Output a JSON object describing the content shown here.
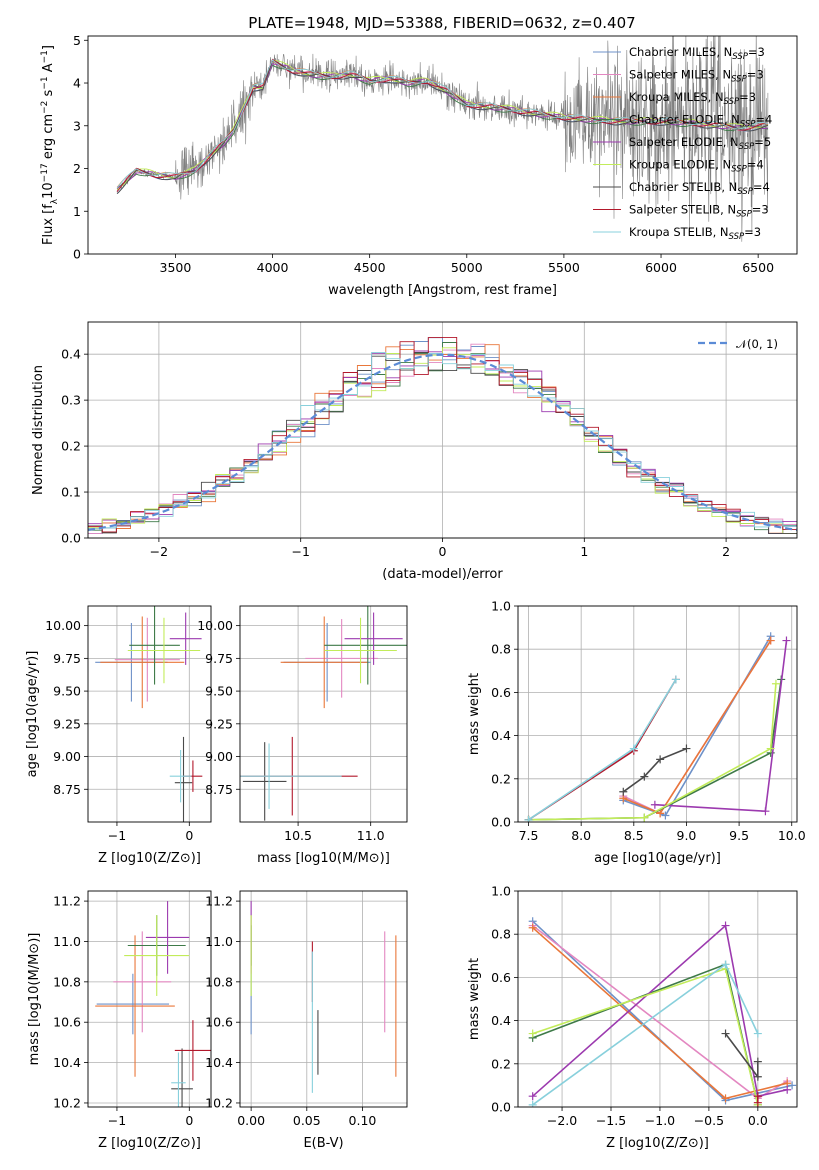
{
  "figure_title": "PLATE=1948, MJD=53388, FIBERID=0632, z=0.407",
  "colors": [
    "#6e91c8",
    "#e387c1",
    "#e9773a",
    "#3e7a48",
    "#9c3aaf",
    "#c2ec5a",
    "#4a4a4a",
    "#b2182b",
    "#88d0dc"
  ],
  "chart_data": [
    {
      "id": "spectrum",
      "type": "line",
      "title": "PLATE=1948, MJD=53388, FIBERID=0632, z=0.407",
      "xlabel": "wavelength [Angstrom, rest frame]",
      "ylabel": "Flux [f_λ 10^-17 erg cm^-2 s^-1 A^-1]",
      "xlim": [
        3050,
        6700
      ],
      "ylim": [
        0,
        5.1
      ],
      "xticks": [
        "3500",
        "4000",
        "4500",
        "5000",
        "5500",
        "6000",
        "6500"
      ],
      "yticks": [
        "0",
        "1",
        "2",
        "3",
        "4",
        "5"
      ],
      "grid": false,
      "legend_position": "top-right",
      "data_color": "#808080",
      "model_x": [
        3200,
        3300,
        3400,
        3500,
        3600,
        3700,
        3750,
        3800,
        3900,
        3950,
        4000,
        4100,
        4200,
        4300,
        4400,
        4500,
        4600,
        4700,
        4800,
        4900,
        5000,
        5200,
        5400,
        5600,
        5800,
        6000,
        6200,
        6400,
        6550
      ],
      "model_y": [
        1.5,
        1.95,
        1.85,
        1.8,
        1.95,
        2.4,
        2.6,
        2.9,
        3.9,
        3.9,
        4.5,
        4.3,
        4.2,
        4.15,
        4.2,
        4.05,
        4.1,
        4.0,
        4.05,
        3.8,
        3.5,
        3.4,
        3.25,
        3.15,
        3.1,
        3.1,
        3.05,
        2.95,
        3.0
      ],
      "legend": [
        {
          "label": "Chabrier MILES, N",
          "sub": "SSP",
          "suffix": "=3"
        },
        {
          "label": "Salpeter MILES, N",
          "sub": "SSP",
          "suffix": "=3"
        },
        {
          "label": "Kroupa MILES, N",
          "sub": "SSP",
          "suffix": "=3"
        },
        {
          "label": "Chabrier ELODIE, N",
          "sub": "SSP",
          "suffix": "=4"
        },
        {
          "label": "Salpeter ELODIE, N",
          "sub": "SSP",
          "suffix": "=5"
        },
        {
          "label": "Kroupa ELODIE, N",
          "sub": "SSP",
          "suffix": "=4"
        },
        {
          "label": "Chabrier STELIB, N",
          "sub": "SSP",
          "suffix": "=4"
        },
        {
          "label": "Salpeter STELIB, N",
          "sub": "SSP",
          "suffix": "=3"
        },
        {
          "label": "Kroupa STELIB, N",
          "sub": "SSP",
          "suffix": "=3"
        }
      ]
    },
    {
      "id": "residuals",
      "type": "line",
      "xlabel": "(data-model)/error",
      "ylabel": "Normed distribution",
      "xlim": [
        -2.5,
        2.5
      ],
      "ylim": [
        0,
        0.47
      ],
      "xticks": [
        "−2",
        "−1",
        "0",
        "1",
        "2"
      ],
      "yticks": [
        "0.0",
        "0.1",
        "0.2",
        "0.3",
        "0.4"
      ],
      "grid": true,
      "legend_position": "top-right",
      "normal_label": "𝒩(0, 1)",
      "normal_color": "#5b8bd6"
    },
    {
      "id": "age_vs_Z",
      "type": "scatter",
      "xlabel": "Z [log10(Z/Z⊙)]",
      "ylabel": "age [log10(age/yr)]",
      "xlim": [
        -1.4,
        0.3
      ],
      "ylim": [
        8.5,
        10.15
      ],
      "xticks": [
        "−1",
        "0"
      ],
      "yticks": [
        "8.75",
        "9.00",
        "9.25",
        "9.50",
        "9.75",
        "10.00"
      ],
      "grid": true,
      "points": [
        {
          "x": -0.8,
          "y": 9.72,
          "xerr": 0.5,
          "yerr": 0.3
        },
        {
          "x": -0.58,
          "y": 9.74,
          "xerr": 0.45,
          "yerr": 0.32
        },
        {
          "x": -0.65,
          "y": 9.72,
          "xerr": 0.58,
          "yerr": 0.35
        },
        {
          "x": -0.48,
          "y": 9.85,
          "xerr": 0.35,
          "yerr": 0.3
        },
        {
          "x": -0.05,
          "y": 9.9,
          "xerr": 0.22,
          "yerr": 0.2
        },
        {
          "x": -0.35,
          "y": 9.81,
          "xerr": 0.5,
          "yerr": 0.25
        },
        {
          "x": -0.08,
          "y": 8.8,
          "xerr": 0.12,
          "yerr": 0.35
        },
        {
          "x": 0.05,
          "y": 8.85,
          "xerr": 0.13,
          "yerr": 0.12
        },
        {
          "x": -0.12,
          "y": 8.85,
          "xerr": 0.15,
          "yerr": 0.2
        }
      ]
    },
    {
      "id": "age_vs_mass",
      "type": "scatter",
      "xlabel": "mass [log10(M/M⊙)]",
      "ylabel": "",
      "xlim": [
        10.1,
        11.25
      ],
      "ylim": [
        8.5,
        10.15
      ],
      "xticks": [
        "10.5",
        "11.0"
      ],
      "yticks": [
        "8.75",
        "9.00",
        "9.25",
        "9.50",
        "9.75",
        "10.00"
      ],
      "grid": true,
      "points": [
        {
          "x": 10.7,
          "y": 9.72,
          "xerr": 0.3,
          "yerr": 0.3
        },
        {
          "x": 10.8,
          "y": 9.75,
          "xerr": 0.25,
          "yerr": 0.3
        },
        {
          "x": 10.68,
          "y": 9.72,
          "xerr": 0.3,
          "yerr": 0.35
        },
        {
          "x": 10.98,
          "y": 9.85,
          "xerr": 0.3,
          "yerr": 0.3
        },
        {
          "x": 11.02,
          "y": 9.9,
          "xerr": 0.2,
          "yerr": 0.2
        },
        {
          "x": 10.93,
          "y": 9.81,
          "xerr": 0.25,
          "yerr": 0.25
        },
        {
          "x": 10.27,
          "y": 8.81,
          "xerr": 0.15,
          "yerr": 0.3
        },
        {
          "x": 10.46,
          "y": 8.85,
          "xerr": 0.45,
          "yerr": 0.3
        },
        {
          "x": 10.3,
          "y": 8.85,
          "xerr": 0.5,
          "yerr": 0.25
        }
      ]
    },
    {
      "id": "weight_vs_age",
      "type": "line",
      "xlabel": "age [log10(age/yr)]",
      "ylabel": "mass weight",
      "xlim": [
        7.4,
        10.05
      ],
      "ylim": [
        0,
        1.0
      ],
      "xticks": [
        "7.5",
        "8.0",
        "8.5",
        "9.0",
        "9.5",
        "10.0"
      ],
      "yticks": [
        "0.0",
        "0.2",
        "0.4",
        "0.6",
        "0.8",
        "1.0"
      ],
      "grid": true,
      "series": [
        {
          "x": [
            8.4,
            8.8,
            9.8
          ],
          "y": [
            0.1,
            0.03,
            0.86
          ]
        },
        {
          "x": [
            8.4,
            8.75,
            9.8
          ],
          "y": [
            0.12,
            0.04,
            0.84
          ]
        },
        {
          "x": [
            8.4,
            8.75,
            9.8
          ],
          "y": [
            0.11,
            0.04,
            0.84
          ]
        },
        {
          "x": [
            7.5,
            8.6,
            9.8,
            9.9
          ],
          "y": [
            0.01,
            0.02,
            0.32,
            0.66
          ]
        },
        {
          "x": [
            8.7,
            9.75,
            9.95
          ],
          "y": [
            0.08,
            0.05,
            0.84
          ]
        },
        {
          "x": [
            7.5,
            8.6,
            9.8,
            9.85
          ],
          "y": [
            0.01,
            0.02,
            0.34,
            0.64
          ]
        },
        {
          "x": [
            8.4,
            8.6,
            8.75,
            9.0
          ],
          "y": [
            0.14,
            0.21,
            0.29,
            0.34
          ]
        },
        {
          "x": [
            7.5,
            8.5,
            8.9
          ],
          "y": [
            0.01,
            0.33,
            0.66
          ]
        },
        {
          "x": [
            7.5,
            8.5,
            8.9
          ],
          "y": [
            0.01,
            0.34,
            0.66
          ]
        }
      ]
    },
    {
      "id": "mass_vs_Z",
      "type": "scatter",
      "xlabel": "Z [log10(Z/Z⊙)]",
      "ylabel": "mass [log10(M/M⊙)]",
      "xlim": [
        -1.4,
        0.3
      ],
      "ylim": [
        10.18,
        11.25
      ],
      "xticks": [
        "−1",
        "0"
      ],
      "yticks": [
        "10.2",
        "10.4",
        "10.6",
        "10.8",
        "11.0",
        "11.2"
      ],
      "grid": true,
      "points": [
        {
          "x": -0.78,
          "y": 10.69,
          "xerr": 0.5,
          "yerr": 0.15
        },
        {
          "x": -0.65,
          "y": 10.8,
          "xerr": 0.4,
          "yerr": 0.25
        },
        {
          "x": -0.75,
          "y": 10.68,
          "xerr": 0.55,
          "yerr": 0.35
        },
        {
          "x": -0.45,
          "y": 10.98,
          "xerr": 0.4,
          "yerr": 0.15
        },
        {
          "x": -0.3,
          "y": 11.02,
          "xerr": 0.3,
          "yerr": 0.18
        },
        {
          "x": -0.45,
          "y": 10.93,
          "xerr": 0.45,
          "yerr": 0.2
        },
        {
          "x": -0.1,
          "y": 10.27,
          "xerr": 0.15,
          "yerr": 0.2
        },
        {
          "x": 0.05,
          "y": 10.46,
          "xerr": 0.25,
          "yerr": 0.15
        },
        {
          "x": -0.15,
          "y": 10.3,
          "xerr": 0.1,
          "yerr": 0.15
        }
      ]
    },
    {
      "id": "mass_vs_EBV",
      "type": "scatter",
      "xlabel": "E(B-V)",
      "ylabel": "",
      "xlim": [
        -0.01,
        0.14
      ],
      "ylim": [
        10.18,
        11.25
      ],
      "xticks": [
        "0.00",
        "0.05",
        "0.10"
      ],
      "yticks": [
        "10.2",
        "10.4",
        "10.6",
        "10.8",
        "11.0",
        "11.2"
      ],
      "grid": true,
      "points": [
        {
          "x": 0.0,
          "y": 10.69,
          "yerr": 0.15
        },
        {
          "x": 0.12,
          "y": 10.8,
          "yerr": 0.25
        },
        {
          "x": 0.13,
          "y": 10.68,
          "yerr": 0.35
        },
        {
          "x": 0.0,
          "y": 10.98,
          "yerr": 0.1
        },
        {
          "x": 0.0,
          "y": 11.02,
          "yerr": 0.18
        },
        {
          "x": 0.0,
          "y": 10.93,
          "yerr": 0.2
        },
        {
          "x": 0.06,
          "y": 10.5,
          "yerr": 0.16
        },
        {
          "x": 0.055,
          "y": 10.85,
          "yerr": 0.15
        },
        {
          "x": 0.055,
          "y": 10.6,
          "yerr": 0.35
        }
      ]
    },
    {
      "id": "weight_vs_Z",
      "type": "line",
      "xlabel": "Z [log10(Z/Z⊙)]",
      "ylabel": "mass weight",
      "xlim": [
        -2.45,
        0.4
      ],
      "ylim": [
        0,
        1.0
      ],
      "xticks": [
        "−2.0",
        "−1.5",
        "−1.0",
        "−0.5",
        "0.0"
      ],
      "yticks": [
        "0.0",
        "0.2",
        "0.4",
        "0.6",
        "0.8",
        "1.0"
      ],
      "grid": true,
      "series": [
        {
          "x": [
            -2.3,
            -0.33,
            0.35
          ],
          "y": [
            0.86,
            0.03,
            0.1
          ]
        },
        {
          "x": [
            -2.3,
            0.0,
            0.3
          ],
          "y": [
            0.84,
            0.04,
            0.12
          ]
        },
        {
          "x": [
            -2.3,
            -0.33,
            0.3
          ],
          "y": [
            0.83,
            0.04,
            0.11
          ]
        },
        {
          "x": [
            -2.3,
            -0.33,
            0.0
          ],
          "y": [
            0.32,
            0.66,
            0.01
          ]
        },
        {
          "x": [
            -2.3,
            -0.33,
            0.0,
            0.3
          ],
          "y": [
            0.05,
            0.84,
            0.05,
            0.08
          ]
        },
        {
          "x": [
            -2.3,
            -0.33,
            0.0
          ],
          "y": [
            0.34,
            0.64,
            0.01
          ]
        },
        {
          "x": [
            -0.33,
            0.0,
            0.0
          ],
          "y": [
            0.34,
            0.14,
            0.21
          ]
        },
        {
          "x": [
            0.0,
            0.0
          ],
          "y": [
            0.02,
            0.05
          ]
        },
        {
          "x": [
            -2.3,
            -0.33,
            0.0
          ],
          "y": [
            0.01,
            0.66,
            0.34
          ]
        }
      ]
    }
  ]
}
